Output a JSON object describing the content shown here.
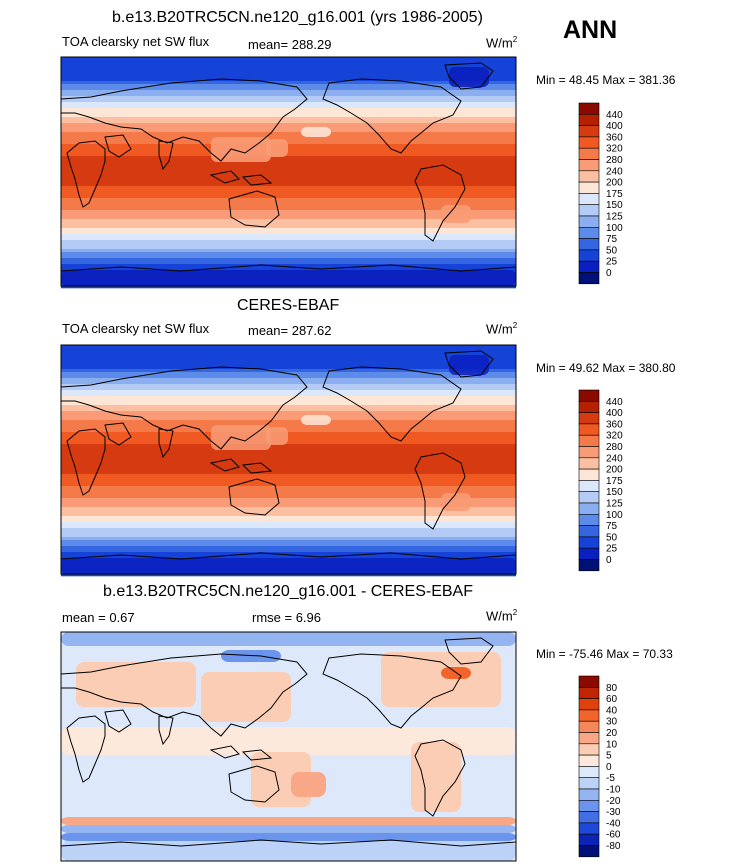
{
  "season": "ANN",
  "chart_data": [
    {
      "type": "heatmap",
      "title": "b.e13.B20TRC5CN.ne120_g16.001 (yrs 1986-2005)",
      "variable": "TOA clearsky net SW flux",
      "mean_text": "mean= 288.29",
      "units": "W/m",
      "units_sup": "2",
      "min": 48.45,
      "max": 381.36,
      "minmax_text": "Min =  48.45 Max = 381.36",
      "colorbar": {
        "levels": [
          "440",
          "400",
          "360",
          "320",
          "280",
          "240",
          "200",
          "175",
          "150",
          "125",
          "100",
          "75",
          "50",
          "25",
          "0"
        ],
        "colors": [
          "#8b0a00",
          "#b52000",
          "#d63a10",
          "#f05a22",
          "#f57a4a",
          "#f89b76",
          "#fbbfa2",
          "#fde6d6",
          "#dbe8fb",
          "#b4ccf5",
          "#8aaef0",
          "#5d8bea",
          "#3566e2",
          "#1543d8",
          "#0a1fbf",
          "#001079"
        ]
      }
    },
    {
      "type": "heatmap",
      "title": "CERES-EBAF",
      "variable": "TOA clearsky net SW flux",
      "mean_text": "mean= 287.62",
      "units": "W/m",
      "units_sup": "2",
      "min": 49.62,
      "max": 380.8,
      "minmax_text": "Min =  49.62 Max = 380.80",
      "colorbar": {
        "levels": [
          "440",
          "400",
          "360",
          "320",
          "280",
          "240",
          "200",
          "175",
          "150",
          "125",
          "100",
          "75",
          "50",
          "25",
          "0"
        ],
        "colors": [
          "#8b0a00",
          "#b52000",
          "#d63a10",
          "#f05a22",
          "#f57a4a",
          "#f89b76",
          "#fbbfa2",
          "#fde6d6",
          "#dbe8fb",
          "#b4ccf5",
          "#8aaef0",
          "#5d8bea",
          "#3566e2",
          "#1543d8",
          "#0a1fbf",
          "#001079"
        ]
      }
    },
    {
      "type": "heatmap",
      "title": "b.e13.B20TRC5CN.ne120_g16.001 - CERES-EBAF",
      "mean_text": "mean =   0.67",
      "rmse_text": "rmse =   6.96",
      "units": "W/m",
      "units_sup": "2",
      "min": -75.46,
      "max": 70.33,
      "minmax_text": "Min = -75.46 Max =  70.33",
      "colorbar": {
        "levels": [
          "80",
          "60",
          "40",
          "30",
          "20",
          "10",
          "5",
          "0",
          "-5",
          "-10",
          "-20",
          "-30",
          "-40",
          "-60",
          "-80"
        ],
        "colors": [
          "#8b0a00",
          "#c02400",
          "#e0420e",
          "#f2642a",
          "#f5875a",
          "#f8a886",
          "#fbcdb4",
          "#fde8dc",
          "#dde9fb",
          "#bcd2f6",
          "#94b5f1",
          "#6b94ec",
          "#426fe4",
          "#1d49d8",
          "#0a24b8",
          "#001079"
        ]
      }
    }
  ]
}
